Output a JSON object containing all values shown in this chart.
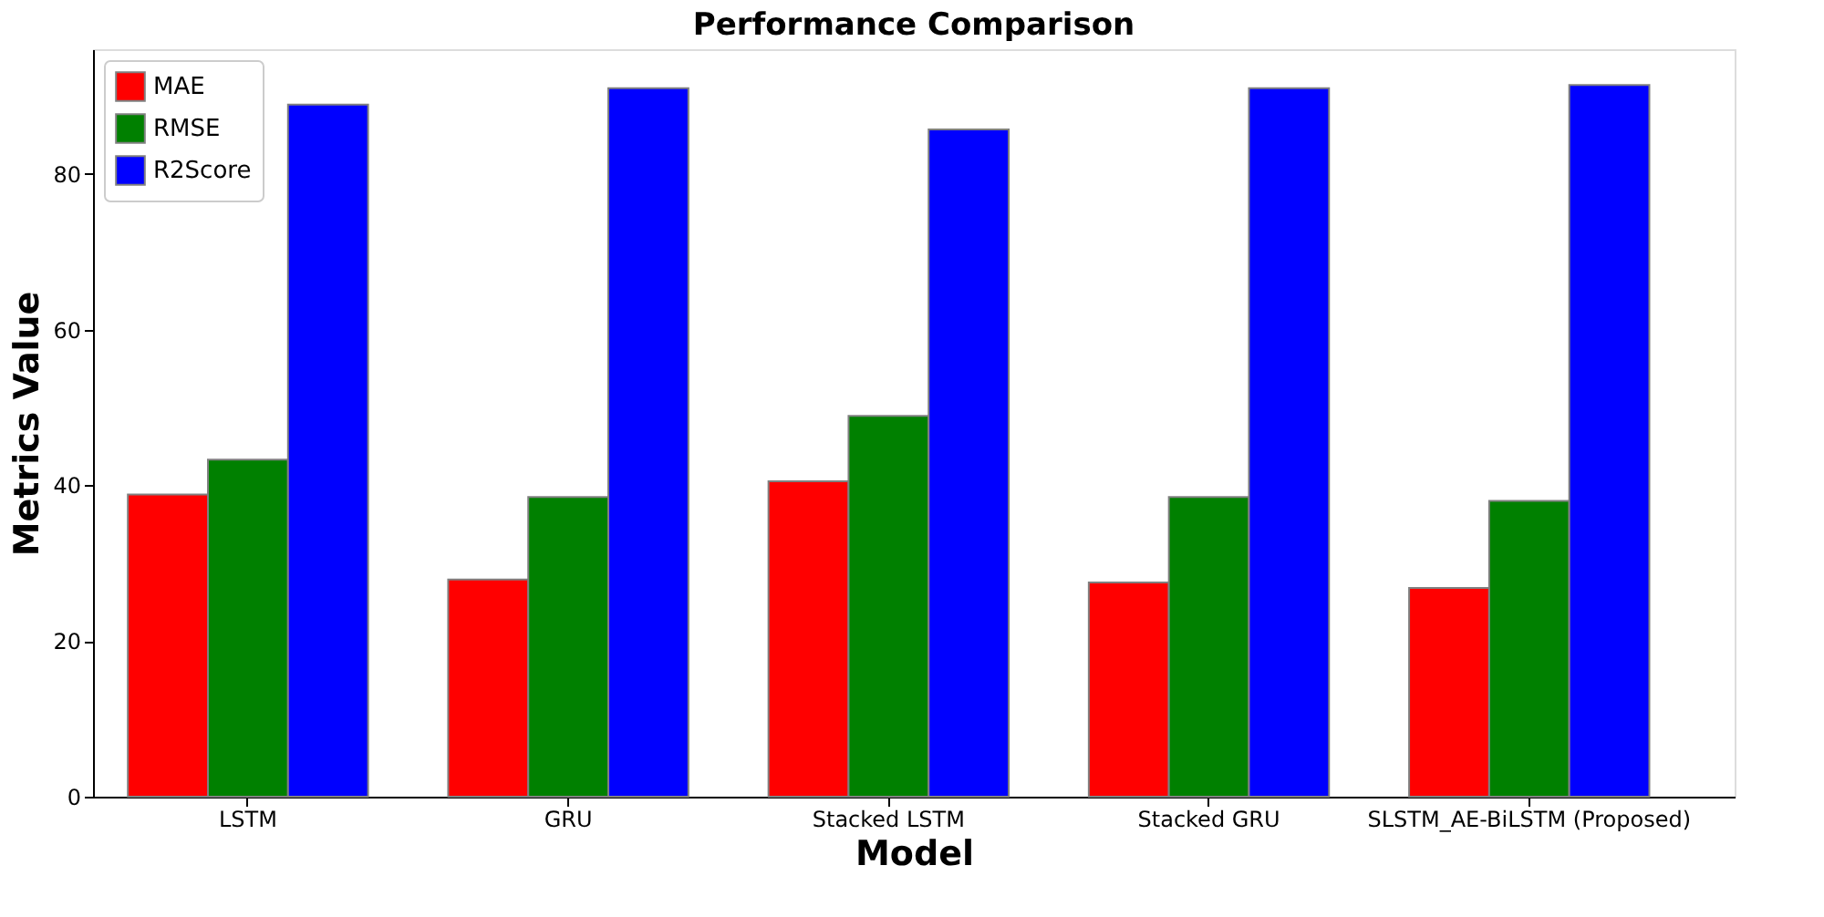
{
  "chart_data": {
    "type": "bar",
    "title": "Performance Comparison",
    "xlabel": "Model",
    "ylabel": "Metrics Value",
    "categories": [
      "LSTM",
      "GRU",
      "Stacked LSTM",
      "Stacked GRU",
      "SLSTM_AE-BiLSTM (Proposed)"
    ],
    "series": [
      {
        "name": "MAE",
        "color": "#ff0000",
        "values": [
          38.8,
          27.9,
          40.5,
          27.5,
          26.8
        ]
      },
      {
        "name": "RMSE",
        "color": "#008000",
        "values": [
          43.3,
          38.5,
          48.9,
          38.5,
          38.0
        ]
      },
      {
        "name": "R2Score",
        "color": "#0000ff",
        "values": [
          88.9,
          91.0,
          85.7,
          91.0,
          91.4
        ]
      }
    ],
    "ylim": [
      0,
      96
    ],
    "yticks": [
      0,
      20,
      40,
      60,
      80
    ],
    "grid": false,
    "legend": "top left"
  }
}
